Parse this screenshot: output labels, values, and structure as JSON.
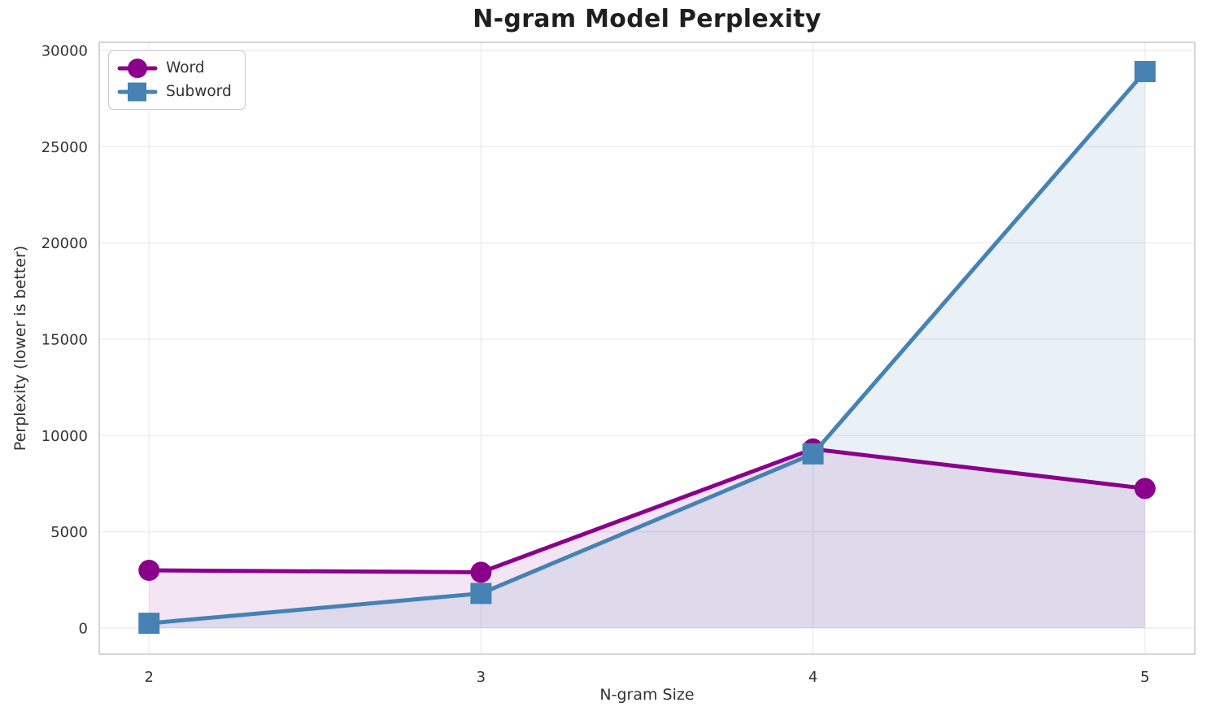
{
  "title": "N-gram Model Perplexity",
  "colors": {
    "word": "#8B008B",
    "subword": "#4682B4",
    "word_fill": "rgba(139,0,139,0.10)",
    "subword_fill": "rgba(70,130,180,0.12)",
    "grid": "#ECECEC",
    "spine": "#CCCCCC",
    "tick_text": "#333333",
    "title_text": "#1F1F1F",
    "background": "#FFFFFF"
  },
  "chart_data": {
    "type": "line",
    "title": "N-gram Model Perplexity",
    "xlabel": "N-gram Size",
    "ylabel": "Perplexity (lower is better)",
    "x": [
      2,
      3,
      4,
      5
    ],
    "series": [
      {
        "name": "Word",
        "marker": "circle",
        "color": "#8B008B",
        "fill_color": "rgba(139,0,139,0.10)",
        "values": [
          3000,
          2900,
          9300,
          7250
        ]
      },
      {
        "name": "Subword",
        "marker": "square",
        "color": "#4682B4",
        "fill_color": "rgba(70,130,180,0.12)",
        "values": [
          250,
          1800,
          9050,
          28900
        ]
      }
    ],
    "xticks": [
      2,
      3,
      4,
      5
    ],
    "yticks": [
      0,
      5000,
      10000,
      15000,
      20000,
      25000,
      30000
    ],
    "xlim": [
      1.85,
      5.15
    ],
    "ylim": [
      -1350,
      30420
    ],
    "grid": true,
    "area_fill": true,
    "fill_baseline": 0,
    "legend_position": "upper left"
  }
}
